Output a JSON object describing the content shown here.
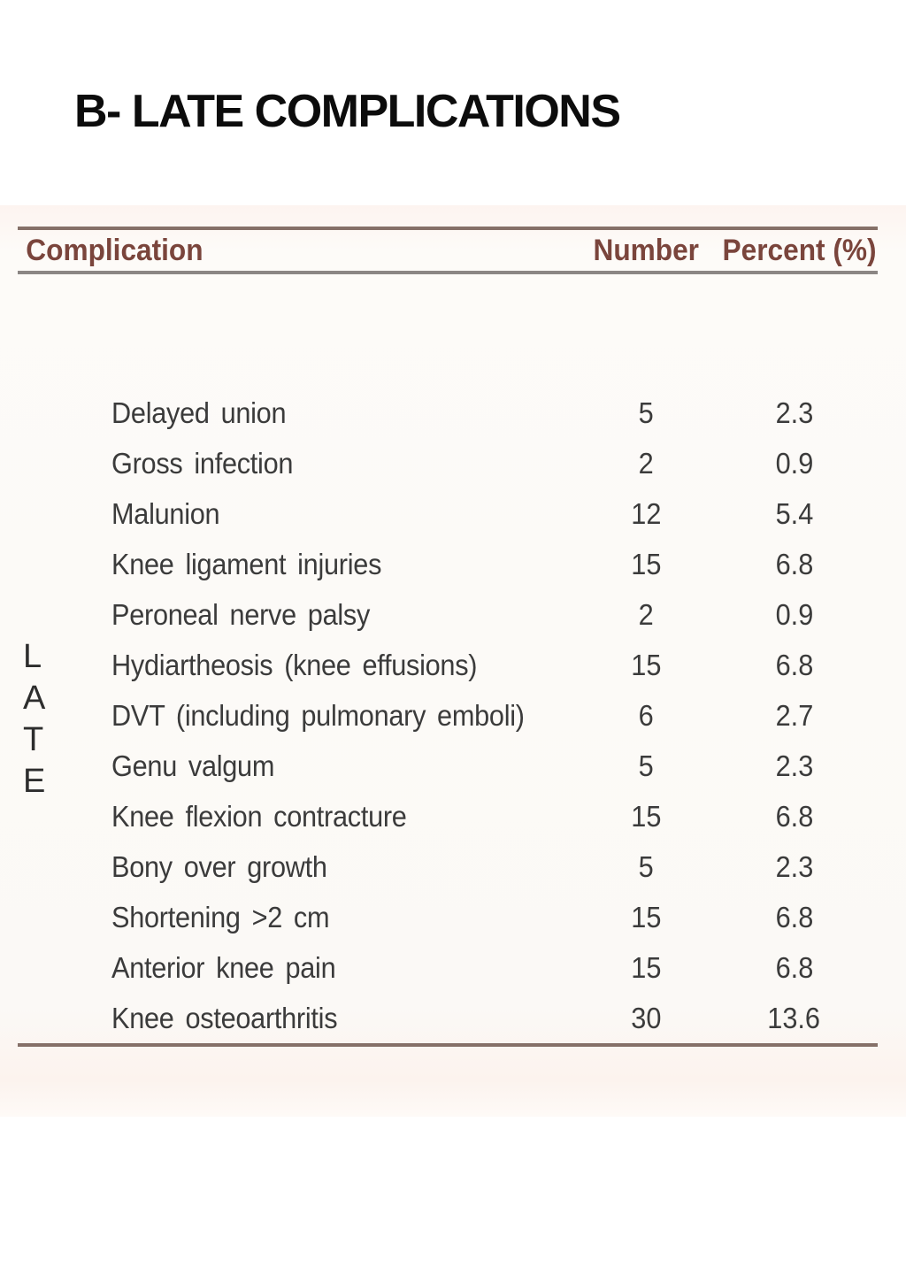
{
  "slide": {
    "title": "B- LATE COMPLICATIONS"
  },
  "table": {
    "side_letters": [
      "L",
      "A",
      "T",
      "E"
    ],
    "headers": {
      "complication": "Complication",
      "number": "Number",
      "percent": "Percent (%)"
    },
    "rows": [
      {
        "complication": "Delayed union",
        "number": "5",
        "percent": "2.3"
      },
      {
        "complication": "Gross infection",
        "number": "2",
        "percent": "0.9"
      },
      {
        "complication": "Malunion",
        "number": "12",
        "percent": "5.4"
      },
      {
        "complication": "Knee ligament injuries",
        "number": "15",
        "percent": "6.8"
      },
      {
        "complication": "Peroneal nerve palsy",
        "number": "2",
        "percent": "0.9"
      },
      {
        "complication": "Hydiartheosis (knee effusions)",
        "number": "15",
        "percent": "6.8"
      },
      {
        "complication": "DVT (including pulmonary emboli)",
        "number": "6",
        "percent": "2.7"
      },
      {
        "complication": "Genu valgum",
        "number": "5",
        "percent": "2.3"
      },
      {
        "complication": "Knee flexion contracture",
        "number": "15",
        "percent": "6.8"
      },
      {
        "complication": "Bony over growth",
        "number": "5",
        "percent": "2.3"
      },
      {
        "complication": "Shortening >2 cm",
        "number": "15",
        "percent": "6.8"
      },
      {
        "complication": "Anterior knee pain",
        "number": "15",
        "percent": "6.8"
      },
      {
        "complication": "Knee osteoarthritis",
        "number": "30",
        "percent": "13.6"
      }
    ],
    "colors": {
      "header_text": "#7a453c",
      "body_text": "#3b3b3b",
      "rule_top": "#857068",
      "rule_mid": "#8b8684"
    }
  }
}
